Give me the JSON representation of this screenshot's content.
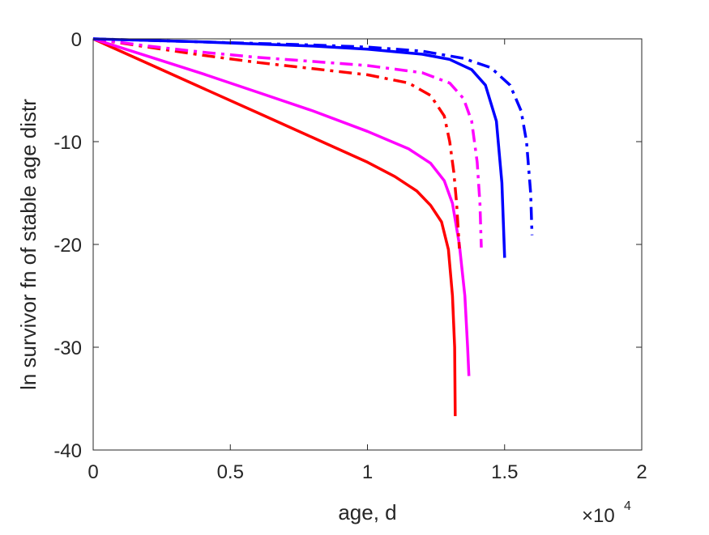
{
  "chart_data": {
    "type": "line",
    "title": "",
    "xlabel": "age, d",
    "ylabel": "ln survivor fn of stable age distr",
    "xlim": [
      0,
      20000
    ],
    "ylim": [
      -40,
      0
    ],
    "x_ticks": [
      0,
      5000,
      10000,
      15000,
      20000
    ],
    "x_tick_labels": [
      "0",
      "0.5",
      "1",
      "1.5",
      "2"
    ],
    "x_exponent_label": {
      "base": "×10",
      "power": "4"
    },
    "y_ticks": [
      0,
      -10,
      -20,
      -30,
      -40
    ],
    "y_tick_labels": [
      "0",
      "-10",
      "-20",
      "-30",
      "-40"
    ],
    "grid": false,
    "legend": "none",
    "series": [
      {
        "color": "#ff0000",
        "style": "solid",
        "points": [
          [
            0,
            0
          ],
          [
            2000,
            -2.4
          ],
          [
            4000,
            -4.8
          ],
          [
            6000,
            -7.2
          ],
          [
            8000,
            -9.6
          ],
          [
            10000,
            -12.0
          ],
          [
            11000,
            -13.4
          ],
          [
            11800,
            -14.8
          ],
          [
            12300,
            -16.2
          ],
          [
            12700,
            -17.8
          ],
          [
            12950,
            -20.5
          ],
          [
            13100,
            -25.0
          ],
          [
            13180,
            -30.0
          ],
          [
            13200,
            -36.7
          ]
        ]
      },
      {
        "color": "#ff00ff",
        "style": "solid",
        "points": [
          [
            0,
            0
          ],
          [
            2000,
            -1.7
          ],
          [
            4000,
            -3.4
          ],
          [
            6000,
            -5.2
          ],
          [
            8000,
            -7.0
          ],
          [
            10000,
            -9.0
          ],
          [
            11500,
            -10.7
          ],
          [
            12300,
            -12.1
          ],
          [
            12800,
            -13.8
          ],
          [
            13100,
            -16.0
          ],
          [
            13350,
            -20.0
          ],
          [
            13550,
            -25.0
          ],
          [
            13650,
            -30.0
          ],
          [
            13700,
            -32.8
          ]
        ]
      },
      {
        "color": "#ff0000",
        "style": "dashdot",
        "points": [
          [
            0,
            0
          ],
          [
            2000,
            -0.8
          ],
          [
            4000,
            -1.6
          ],
          [
            6000,
            -2.3
          ],
          [
            8000,
            -2.9
          ],
          [
            10000,
            -3.5
          ],
          [
            11500,
            -4.3
          ],
          [
            12300,
            -5.5
          ],
          [
            12800,
            -7.5
          ],
          [
            13000,
            -10.0
          ],
          [
            13150,
            -13.0
          ],
          [
            13250,
            -16.0
          ],
          [
            13350,
            -20.4
          ]
        ]
      },
      {
        "color": "#ff00ff",
        "style": "dashdot",
        "points": [
          [
            0,
            0
          ],
          [
            2000,
            -0.7
          ],
          [
            4000,
            -1.3
          ],
          [
            6000,
            -1.8
          ],
          [
            8000,
            -2.2
          ],
          [
            10000,
            -2.6
          ],
          [
            12000,
            -3.3
          ],
          [
            13000,
            -4.3
          ],
          [
            13500,
            -5.8
          ],
          [
            13800,
            -8.0
          ],
          [
            14000,
            -12.0
          ],
          [
            14100,
            -16.0
          ],
          [
            14150,
            -20.3
          ]
        ]
      },
      {
        "color": "#0000ff",
        "style": "solid",
        "points": [
          [
            0,
            0
          ],
          [
            2000,
            -0.15
          ],
          [
            4000,
            -0.3
          ],
          [
            6000,
            -0.5
          ],
          [
            8000,
            -0.7
          ],
          [
            10000,
            -1.0
          ],
          [
            12000,
            -1.5
          ],
          [
            13000,
            -2.0
          ],
          [
            13800,
            -3.0
          ],
          [
            14300,
            -4.5
          ],
          [
            14700,
            -8.0
          ],
          [
            14900,
            -14.0
          ],
          [
            15000,
            -21.3
          ]
        ]
      },
      {
        "color": "#0000ff",
        "style": "dashdot",
        "points": [
          [
            0,
            0
          ],
          [
            2000,
            -0.15
          ],
          [
            4000,
            -0.3
          ],
          [
            6000,
            -0.45
          ],
          [
            8000,
            -0.6
          ],
          [
            10000,
            -0.8
          ],
          [
            12000,
            -1.2
          ],
          [
            13500,
            -1.9
          ],
          [
            14500,
            -2.8
          ],
          [
            15200,
            -4.5
          ],
          [
            15600,
            -7.0
          ],
          [
            15800,
            -10.0
          ],
          [
            15950,
            -15.0
          ],
          [
            16000,
            -19.1
          ]
        ]
      }
    ]
  }
}
